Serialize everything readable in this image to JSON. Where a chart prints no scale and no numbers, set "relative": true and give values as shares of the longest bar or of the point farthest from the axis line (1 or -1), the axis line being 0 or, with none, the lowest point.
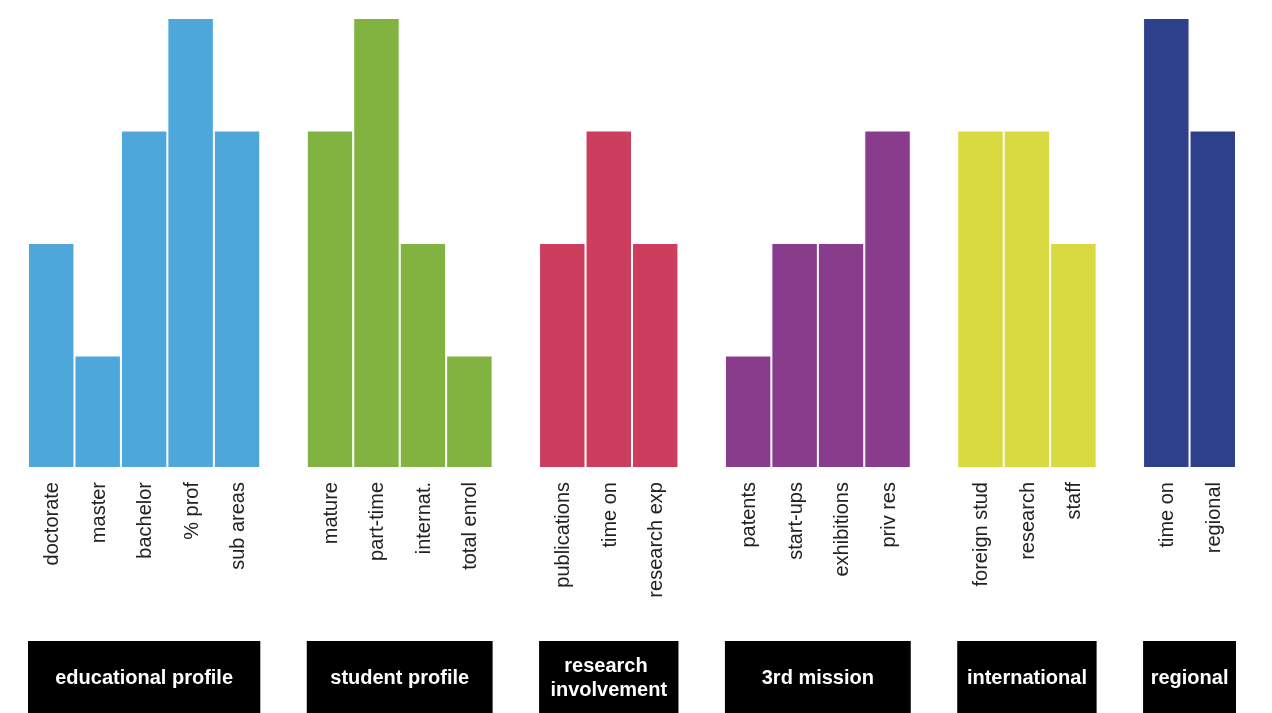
{
  "chart_data": {
    "type": "bar",
    "relative": true,
    "categories": [
      "doctorate",
      "master",
      "bachelor",
      "% prof",
      "sub areas",
      null,
      "mature",
      "part-time",
      "internat.",
      "total enrol",
      null,
      "publications",
      "time on",
      "research exp",
      null,
      "patents",
      "start-ups",
      "exhibitions",
      "priv res",
      null,
      "foreign stud",
      "research",
      "staff",
      null,
      "time on",
      "regional"
    ],
    "values": [
      0.5,
      0.25,
      0.75,
      1,
      0.75,
      null,
      0.75,
      1,
      0.5,
      0.25,
      null,
      0.5,
      0.75,
      0.5,
      null,
      0.25,
      0.5,
      0.5,
      0.75,
      null,
      0.75,
      0.75,
      0.5,
      null,
      1,
      0.75
    ],
    "colors": [
      "#4da7db",
      "#4da7db",
      "#4da7db",
      "#4da7db",
      "#4da7db",
      null,
      "#82b341",
      "#82b341",
      "#82b341",
      "#82b341",
      null,
      "#cc3d5e",
      "#cc3d5e",
      "#cc3d5e",
      null,
      "#8a3c8c",
      "#8a3c8c",
      "#8a3c8c",
      "#8a3c8c",
      null,
      "#d8da3f",
      "#d8da3f",
      "#d8da3f",
      null,
      "#2e3f8c",
      "#2e3f8c"
    ],
    "annotations": [
      "educational profile",
      "student profile",
      "research involvement",
      "3rd mission",
      "international",
      "regional"
    ]
  }
}
